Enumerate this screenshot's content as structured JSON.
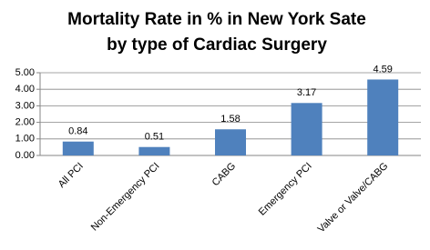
{
  "chart_data": {
    "type": "bar",
    "title": [
      "Mortality Rate in %  in New York Sate",
      "by type of Cardiac Surgery"
    ],
    "categories": [
      "All PCI",
      "Non-Emergency PCI",
      "CABG",
      "Emergency PCI",
      "Valve or Valve/CABG"
    ],
    "values": [
      0.84,
      0.51,
      1.58,
      3.17,
      4.59
    ],
    "color": "#4f81bd",
    "ylim": [
      0,
      5
    ],
    "yticks": [
      {
        "value": 0,
        "label": "0.00"
      },
      {
        "value": 1,
        "label": "1.00"
      },
      {
        "value": 2,
        "label": "2.00"
      },
      {
        "value": 3,
        "label": "3.00"
      },
      {
        "value": 4,
        "label": "4.00"
      },
      {
        "value": 5,
        "label": "5.00"
      }
    ],
    "grid": true
  }
}
